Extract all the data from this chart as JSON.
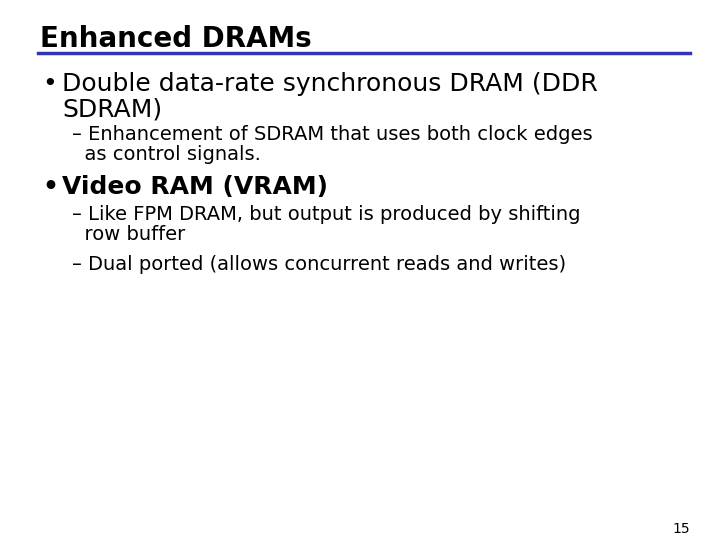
{
  "title": "Enhanced DRAMs",
  "title_fontsize": 20,
  "title_color": "#000000",
  "line_color": "#3333bb",
  "background_color": "#ffffff",
  "bullet1_text_line1": "Double data-rate synchronous DRAM (DDR",
  "bullet1_text_line2": "SDRAM)",
  "bullet1_fontsize": 18,
  "sub1_line1": "– Enhancement of SDRAM that uses both clock edges",
  "sub1_line2": "  as control signals.",
  "sub1_fontsize": 14,
  "bullet2_text": "Video RAM (VRAM)",
  "bullet2_fontsize": 18,
  "sub2a_line1": "– Like FPM DRAM, but output is produced by shifting",
  "sub2a_line2": "  row buffer",
  "sub2a_fontsize": 14,
  "sub2b_text": "– Dual ported (allows concurrent reads and writes)",
  "sub2b_fontsize": 14,
  "page_number": "15",
  "page_fontsize": 10
}
